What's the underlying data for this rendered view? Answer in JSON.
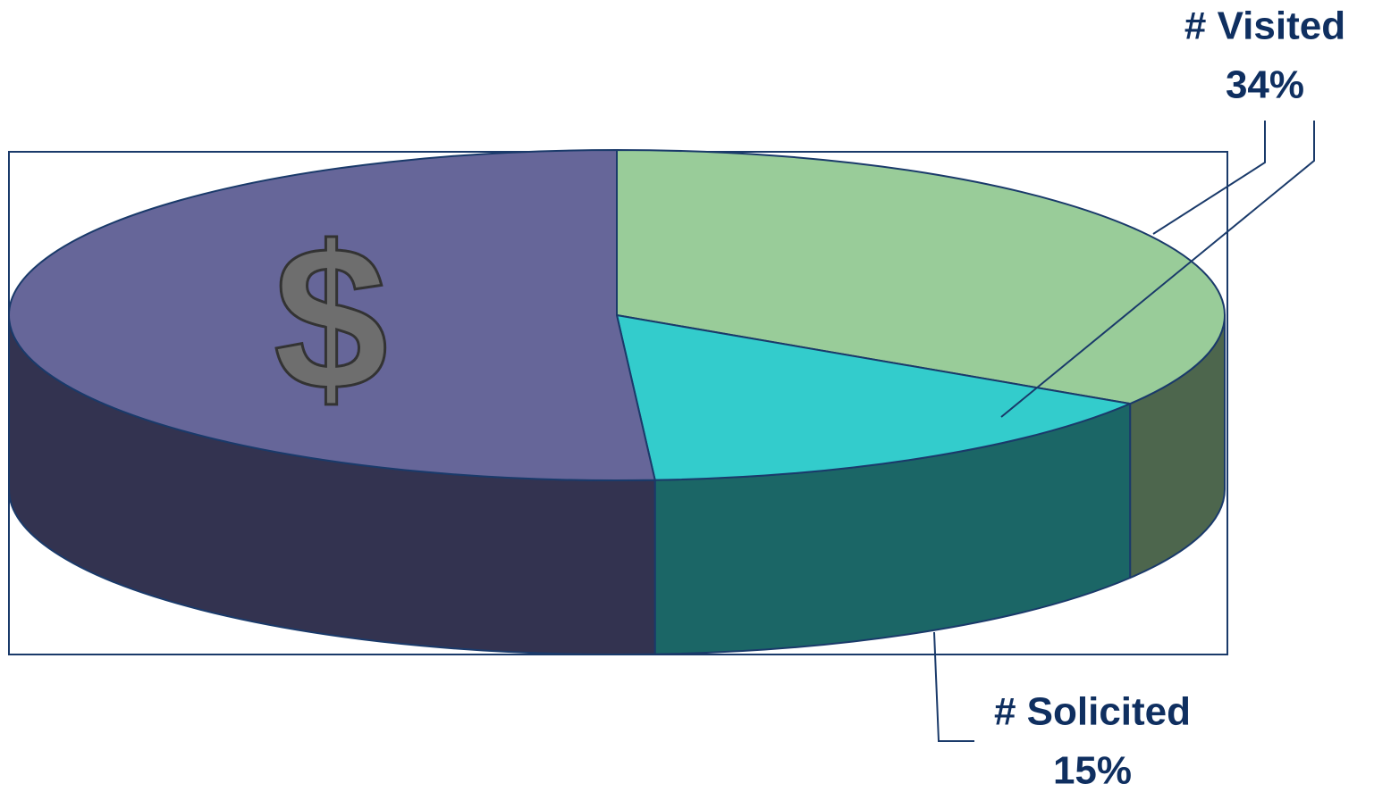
{
  "chart_data": {
    "type": "pie3d",
    "categories": [
      "# Visited",
      "# Solicited",
      null
    ],
    "values": [
      34,
      15,
      51
    ],
    "value_labels": [
      "34%",
      "15%",
      null
    ],
    "colors": [
      "#99cc99",
      "#33cccc",
      "#666699"
    ],
    "side_colors": [
      "#4d664d",
      "#1b6666",
      "#333350"
    ],
    "annotation": "$"
  }
}
